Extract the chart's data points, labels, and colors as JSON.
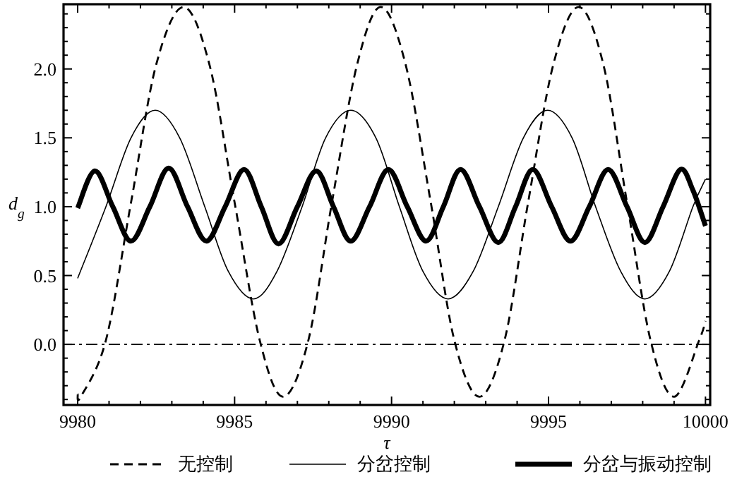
{
  "chart_data": {
    "type": "line",
    "xlabel": "τ",
    "ylabel": "d$_{g}$",
    "xlim": [
      9979.55,
      10000.15
    ],
    "ylim": [
      -0.44,
      2.47
    ],
    "xticks": [
      9980,
      {
        "value": 9981,
        "label": null
      },
      {
        "value": 9982,
        "label": null
      },
      {
        "value": 9983,
        "label": null
      },
      {
        "value": 9984,
        "label": null
      },
      9985,
      {
        "value": 9986,
        "label": null
      },
      {
        "value": 9987,
        "label": null
      },
      {
        "value": 9988,
        "label": null
      },
      {
        "value": 9989,
        "label": null
      },
      9990,
      {
        "value": 9991,
        "label": null
      },
      {
        "value": 9992,
        "label": null
      },
      {
        "value": 9993,
        "label": null
      },
      {
        "value": 9994,
        "label": null
      },
      9995,
      {
        "value": 9996,
        "label": null
      },
      {
        "value": 9997,
        "label": null
      },
      {
        "value": 9998,
        "label": null
      },
      {
        "value": 9999,
        "label": null
      },
      10000
    ],
    "yticks": [
      {
        "value": -0.4,
        "label": null
      },
      {
        "value": -0.3,
        "label": null
      },
      {
        "value": -0.2,
        "label": null
      },
      {
        "value": -0.1,
        "label": null
      },
      {
        "value": 0,
        "label": "0.0"
      },
      {
        "value": 0.1,
        "label": null
      },
      {
        "value": 0.2,
        "label": null
      },
      {
        "value": 0.3,
        "label": null
      },
      {
        "value": 0.4,
        "label": null
      },
      {
        "value": 0.5,
        "label": "0.5"
      },
      {
        "value": 0.6,
        "label": null
      },
      {
        "value": 0.7,
        "label": null
      },
      {
        "value": 0.8,
        "label": null
      },
      {
        "value": 0.9,
        "label": null
      },
      {
        "value": 1,
        "label": "1.0"
      },
      {
        "value": 1.1,
        "label": null
      },
      {
        "value": 1.2,
        "label": null
      },
      {
        "value": 1.3,
        "label": null
      },
      {
        "value": 1.4,
        "label": null
      },
      {
        "value": 1.5,
        "label": "1.5"
      },
      {
        "value": 1.6,
        "label": null
      },
      {
        "value": 1.7,
        "label": null
      },
      {
        "value": 1.8,
        "label": null
      },
      {
        "value": 1.9,
        "label": null
      },
      {
        "value": 2,
        "label": "2.0"
      },
      {
        "value": 2.1,
        "label": null
      },
      {
        "value": 2.2,
        "label": null
      },
      {
        "value": 2.3,
        "label": null
      },
      {
        "value": 2.4,
        "label": null
      }
    ],
    "grid": false,
    "legend": "bottom",
    "marker": "none",
    "ref_lines": [
      {
        "axis": "y",
        "value": 0,
        "color": "#000000",
        "line_style": "dashdot"
      }
    ],
    "series": [
      {
        "name": "无控制",
        "color": "#000000",
        "line_style": "dashed",
        "x": [
          9980,
          9980.1,
          9980.9,
          9981.7,
          9982.5,
          9983.37,
          9984.2,
          9985.0,
          9985.8,
          9986.55,
          9987.35,
          9988.1,
          9988.9,
          9989.66,
          9990.45,
          9991.25,
          9992.0,
          9992.8,
          9993.6,
          9994.35,
          9995.15,
          9995.96,
          9996.75,
          9997.5,
          9998.25,
          9999.0,
          9999.8,
          10000
        ],
        "values": [
          -0.36,
          -0.38,
          0.03,
          1.03,
          2.03,
          2.45,
          2.03,
          1.03,
          0.03,
          -0.38,
          0.03,
          1.03,
          2.03,
          2.45,
          2.03,
          1.03,
          0.03,
          -0.38,
          0.03,
          1.03,
          2.03,
          2.45,
          2.03,
          1.03,
          0.03,
          -0.38,
          0.03,
          0.17
        ]
      },
      {
        "name": "分岔控制",
        "color": "#000000",
        "line_style": "solid",
        "x": [
          9980,
          9980.9,
          9981.7,
          9982.47,
          9983.25,
          9984.05,
          9984.8,
          9985.6,
          9986.35,
          9987.15,
          9987.9,
          9988.7,
          9989.5,
          9990.25,
          9991.0,
          9991.8,
          9992.6,
          9993.4,
          9994.2,
          9994.97,
          9995.75,
          9996.5,
          9997.3,
          9998.07,
          9998.85,
          9999.6,
          10000
        ],
        "values": [
          0.48,
          1.0,
          1.5,
          1.7,
          1.5,
          1.0,
          0.53,
          0.33,
          0.53,
          1.0,
          1.5,
          1.7,
          1.5,
          1.0,
          0.53,
          0.33,
          0.53,
          1.0,
          1.5,
          1.7,
          1.5,
          1.0,
          0.53,
          0.33,
          0.53,
          1.0,
          1.2
        ]
      },
      {
        "name": "分岔与振动控制",
        "color": "#000000",
        "line_style": "solid",
        "x": [
          9980,
          9980.55,
          9981.12,
          9981.7,
          9982.3,
          9982.9,
          9983.5,
          9984.1,
          9984.7,
          9985.3,
          9985.85,
          9986.4,
          9987.0,
          9987.6,
          9988.15,
          9988.7,
          9989.3,
          9989.9,
          9990.5,
          9991.1,
          9991.65,
          9992.2,
          9992.8,
          9993.4,
          9993.95,
          9994.5,
          9995.1,
          9995.7,
          9996.3,
          9996.9,
          9997.5,
          9998.07,
          9998.65,
          9999.2,
          9999.6,
          10000
        ],
        "values": [
          0.99,
          1.26,
          1.0,
          0.75,
          1.0,
          1.28,
          1.0,
          0.75,
          1.0,
          1.27,
          1.0,
          0.73,
          1.0,
          1.26,
          1.0,
          0.75,
          1.0,
          1.27,
          1.0,
          0.75,
          1.0,
          1.27,
          1.0,
          0.74,
          1.0,
          1.27,
          1.0,
          0.75,
          1.0,
          1.27,
          1.0,
          0.74,
          1.0,
          1.27,
          1.12,
          0.86
        ]
      }
    ]
  }
}
